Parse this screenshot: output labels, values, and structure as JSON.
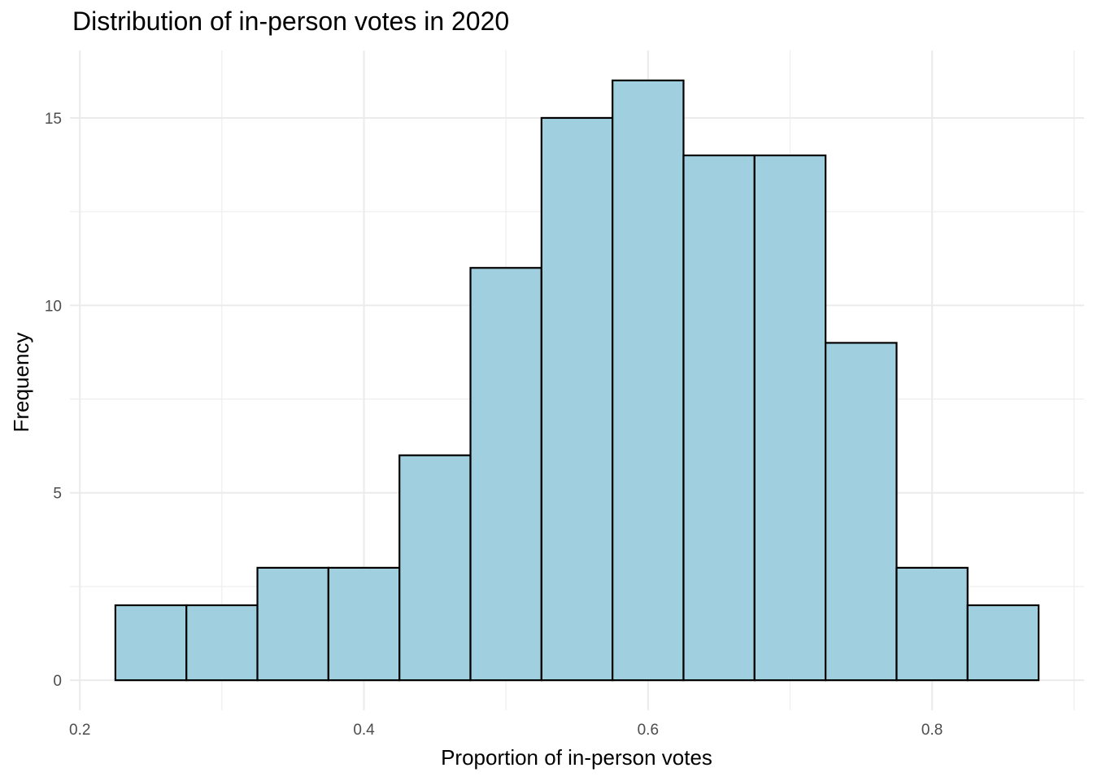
{
  "chart_data": {
    "type": "bar",
    "title": "Distribution of in-person votes in 2020",
    "xlabel": "Proportion of in-person votes",
    "ylabel": "Frequency",
    "bin_width": 0.05,
    "bins": [
      {
        "start": 0.225,
        "end": 0.275,
        "count": 2
      },
      {
        "start": 0.275,
        "end": 0.325,
        "count": 2
      },
      {
        "start": 0.325,
        "end": 0.375,
        "count": 3
      },
      {
        "start": 0.375,
        "end": 0.425,
        "count": 3
      },
      {
        "start": 0.425,
        "end": 0.475,
        "count": 6
      },
      {
        "start": 0.475,
        "end": 0.525,
        "count": 11
      },
      {
        "start": 0.525,
        "end": 0.575,
        "count": 15
      },
      {
        "start": 0.575,
        "end": 0.625,
        "count": 16
      },
      {
        "start": 0.625,
        "end": 0.675,
        "count": 14
      },
      {
        "start": 0.675,
        "end": 0.725,
        "count": 14
      },
      {
        "start": 0.725,
        "end": 0.775,
        "count": 9
      },
      {
        "start": 0.775,
        "end": 0.825,
        "count": 3
      },
      {
        "start": 0.825,
        "end": 0.875,
        "count": 2
      }
    ],
    "xlim": [
      0.193,
      0.907
    ],
    "ylim": [
      -0.8,
      16.8
    ],
    "x_ticks": [
      0.2,
      0.4,
      0.6,
      0.8
    ],
    "x_tick_labels": [
      "0.2",
      "0.4",
      "0.6",
      "0.8"
    ],
    "y_ticks": [
      0,
      5,
      10,
      15
    ],
    "y_tick_labels": [
      "0",
      "5",
      "10",
      "15"
    ],
    "grid": true,
    "bar_fill": "#a0cfe0",
    "bar_stroke": "#000000",
    "grid_color": "#ebebeb"
  }
}
